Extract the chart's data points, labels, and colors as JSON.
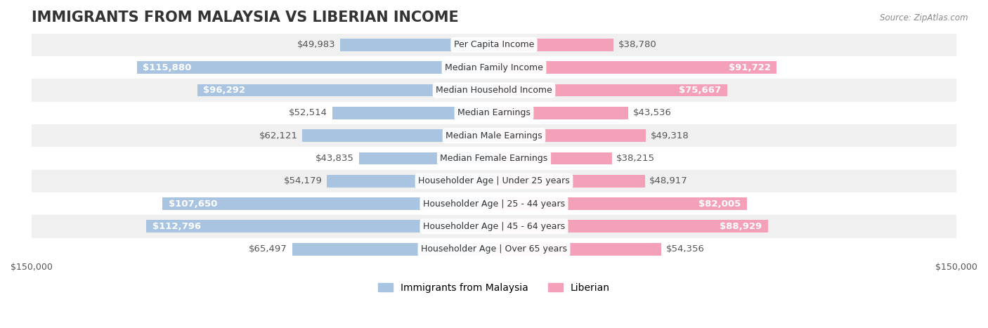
{
  "title": "IMMIGRANTS FROM MALAYSIA VS LIBERIAN INCOME",
  "source": "Source: ZipAtlas.com",
  "categories": [
    "Per Capita Income",
    "Median Family Income",
    "Median Household Income",
    "Median Earnings",
    "Median Male Earnings",
    "Median Female Earnings",
    "Householder Age | Under 25 years",
    "Householder Age | 25 - 44 years",
    "Householder Age | 45 - 64 years",
    "Householder Age | Over 65 years"
  ],
  "malaysia_values": [
    49983,
    115880,
    96292,
    52514,
    62121,
    43835,
    54179,
    107650,
    112796,
    65497
  ],
  "liberian_values": [
    38780,
    91722,
    75667,
    43536,
    49318,
    38215,
    48917,
    82005,
    88929,
    54356
  ],
  "malaysia_labels": [
    "$49,983",
    "$115,880",
    "$96,292",
    "$52,514",
    "$62,121",
    "$43,835",
    "$54,179",
    "$107,650",
    "$112,796",
    "$65,497"
  ],
  "liberian_labels": [
    "$38,780",
    "$91,722",
    "$75,667",
    "$43,536",
    "$49,318",
    "$38,215",
    "$48,917",
    "$82,005",
    "$88,929",
    "$54,356"
  ],
  "malaysia_color": "#a8c4e0",
  "malaysia_color_dark": "#6fa8d4",
  "liberian_color": "#f4a0b8",
  "liberian_color_dark": "#e8739a",
  "max_value": 150000,
  "xlim": 150000,
  "background_color": "#ffffff",
  "row_bg_color": "#f0f0f0",
  "row_bg_alt": "#ffffff",
  "bar_height": 0.55,
  "title_fontsize": 15,
  "label_fontsize": 9.5,
  "axis_label_fontsize": 9,
  "legend_fontsize": 10
}
